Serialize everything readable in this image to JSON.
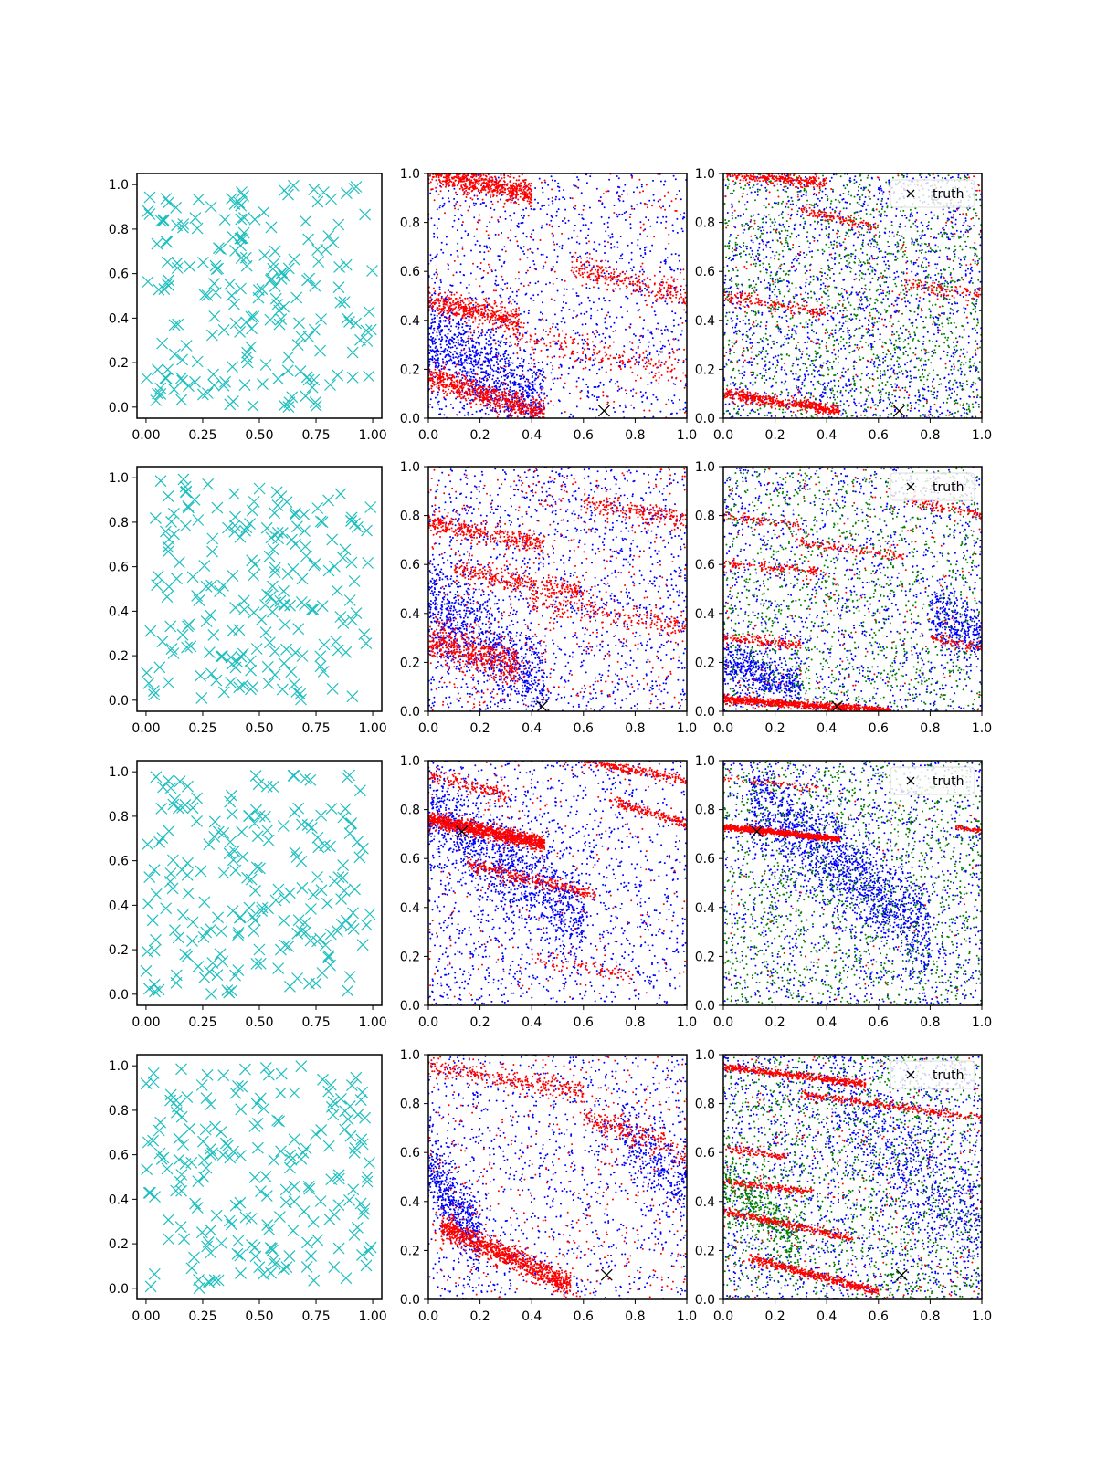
{
  "figure": {
    "background": "#ffffff",
    "layout": "4 rows x 3 columns of scatter plots",
    "colors": {
      "cyan": "#1fbfbf",
      "red": "#ff0000",
      "blue": "#0000ff",
      "green": "#008000",
      "black": "#000000"
    }
  },
  "chart_data": [
    {
      "row": 0,
      "col": 0,
      "type": "scatter",
      "marker": "x",
      "color": "#1fbfbf",
      "n_points": 200,
      "seed": 11,
      "xlim": [
        -0.04,
        1.04
      ],
      "ylim": [
        -0.05,
        1.05
      ],
      "xticks": [
        "0.00",
        "0.25",
        "0.50",
        "0.75",
        "1.00"
      ],
      "yticks": [
        "0.0",
        "0.2",
        "0.4",
        "0.6",
        "0.8",
        "1.0"
      ]
    },
    {
      "row": 0,
      "col": 1,
      "type": "scatter",
      "marker": "dot",
      "seed": 12,
      "xlim": [
        0,
        1
      ],
      "ylim": [
        0,
        1
      ],
      "xticks": [
        "0.0",
        "0.2",
        "0.4",
        "0.6",
        "0.8",
        "1.0"
      ],
      "yticks": [
        "0.0",
        "0.2",
        "0.4",
        "0.6",
        "0.8",
        "1.0"
      ],
      "truth": {
        "x": 0.68,
        "y": 0.03
      },
      "series": [
        {
          "name": "blue",
          "color": "#0000ff",
          "uniform": 1200,
          "bands": [
            {
              "x0": 0.0,
              "x1": 0.45,
              "y0": 0.35,
              "y1": 0.05,
              "n": 900,
              "w": 0.18
            }
          ]
        },
        {
          "name": "red",
          "color": "#ff0000",
          "uniform": 300,
          "bands": [
            {
              "x0": 0.0,
              "x1": 0.4,
              "y0": 1.0,
              "y1": 0.92,
              "n": 700,
              "w": 0.05
            },
            {
              "x0": 0.0,
              "x1": 0.35,
              "y0": 0.48,
              "y1": 0.4,
              "n": 450,
              "w": 0.05
            },
            {
              "x0": 0.0,
              "x1": 0.45,
              "y0": 0.17,
              "y1": 0.02,
              "n": 650,
              "w": 0.05
            },
            {
              "x0": 0.55,
              "x1": 1.0,
              "y0": 0.62,
              "y1": 0.5,
              "n": 250,
              "w": 0.05
            },
            {
              "x0": 0.3,
              "x1": 1.0,
              "y0": 0.35,
              "y1": 0.18,
              "n": 200,
              "w": 0.06
            }
          ]
        }
      ]
    },
    {
      "row": 0,
      "col": 2,
      "type": "scatter",
      "marker": "dot",
      "seed": 13,
      "xlim": [
        0,
        1
      ],
      "ylim": [
        0,
        1
      ],
      "xticks": [
        "0.0",
        "0.2",
        "0.4",
        "0.6",
        "0.8",
        "1.0"
      ],
      "yticks": [
        "0.0",
        "0.2",
        "0.4",
        "0.6",
        "0.8",
        "1.0"
      ],
      "truth": {
        "x": 0.68,
        "y": 0.03
      },
      "legend": {
        "label": "truth",
        "location": "upper right"
      },
      "series": [
        {
          "name": "blue",
          "color": "#0000ff",
          "uniform": 1700,
          "bands": []
        },
        {
          "name": "green",
          "color": "#008000",
          "uniform": 1400,
          "bands": []
        },
        {
          "name": "red",
          "color": "#ff0000",
          "uniform": 250,
          "bands": [
            {
              "x0": 0.0,
              "x1": 0.4,
              "y0": 1.0,
              "y1": 0.96,
              "n": 300,
              "w": 0.03
            },
            {
              "x0": 0.3,
              "x1": 0.6,
              "y0": 0.85,
              "y1": 0.78,
              "n": 120,
              "w": 0.02
            },
            {
              "x0": 0.0,
              "x1": 0.45,
              "y0": 0.1,
              "y1": 0.03,
              "n": 500,
              "w": 0.025
            },
            {
              "x0": 0.0,
              "x1": 0.4,
              "y0": 0.5,
              "y1": 0.43,
              "n": 150,
              "w": 0.03
            },
            {
              "x0": 0.7,
              "x1": 1.0,
              "y0": 0.55,
              "y1": 0.5,
              "n": 100,
              "w": 0.03
            }
          ]
        }
      ]
    },
    {
      "row": 1,
      "col": 0,
      "type": "scatter",
      "marker": "x",
      "color": "#1fbfbf",
      "n_points": 200,
      "seed": 21,
      "xlim": [
        -0.04,
        1.04
      ],
      "ylim": [
        -0.05,
        1.05
      ],
      "xticks": [
        "0.00",
        "0.25",
        "0.50",
        "0.75",
        "1.00"
      ],
      "yticks": [
        "0.0",
        "0.2",
        "0.4",
        "0.6",
        "0.8",
        "1.0"
      ]
    },
    {
      "row": 1,
      "col": 1,
      "type": "scatter",
      "marker": "dot",
      "seed": 22,
      "xlim": [
        0,
        1
      ],
      "ylim": [
        0,
        1
      ],
      "xticks": [
        "0.0",
        "0.2",
        "0.4",
        "0.6",
        "0.8",
        "1.0"
      ],
      "yticks": [
        "0.0",
        "0.2",
        "0.4",
        "0.6",
        "0.8",
        "1.0"
      ],
      "truth": {
        "x": 0.44,
        "y": 0.02
      },
      "series": [
        {
          "name": "blue",
          "color": "#0000ff",
          "uniform": 1400,
          "bands": [
            {
              "x0": 0.0,
              "x1": 0.45,
              "y0": 0.45,
              "y1": 0.1,
              "n": 800,
              "w": 0.2
            }
          ]
        },
        {
          "name": "red",
          "color": "#ff0000",
          "uniform": 500,
          "bands": [
            {
              "x0": 0.0,
              "x1": 0.45,
              "y0": 0.77,
              "y1": 0.68,
              "n": 350,
              "w": 0.04
            },
            {
              "x0": 0.1,
              "x1": 0.6,
              "y0": 0.58,
              "y1": 0.48,
              "n": 300,
              "w": 0.04
            },
            {
              "x0": 0.0,
              "x1": 0.35,
              "y0": 0.3,
              "y1": 0.18,
              "n": 500,
              "w": 0.08
            },
            {
              "x0": 0.6,
              "x1": 1.0,
              "y0": 0.85,
              "y1": 0.78,
              "n": 200,
              "w": 0.04
            },
            {
              "x0": 0.4,
              "x1": 1.0,
              "y0": 0.45,
              "y1": 0.35,
              "n": 200,
              "w": 0.05
            }
          ]
        }
      ]
    },
    {
      "row": 1,
      "col": 2,
      "type": "scatter",
      "marker": "dot",
      "seed": 23,
      "xlim": [
        0,
        1
      ],
      "ylim": [
        0,
        1
      ],
      "xticks": [
        "0.0",
        "0.2",
        "0.4",
        "0.6",
        "0.8",
        "1.0"
      ],
      "yticks": [
        "0.0",
        "0.2",
        "0.4",
        "0.6",
        "0.8",
        "1.0"
      ],
      "truth": {
        "x": 0.44,
        "y": 0.02
      },
      "legend": {
        "label": "truth",
        "location": "upper right"
      },
      "series": [
        {
          "name": "blue",
          "color": "#0000ff",
          "uniform": 1300,
          "bands": [
            {
              "x0": 0.0,
              "x1": 0.3,
              "y0": 0.2,
              "y1": 0.1,
              "n": 500,
              "w": 0.1
            },
            {
              "x0": 0.8,
              "x1": 1.0,
              "y0": 0.4,
              "y1": 0.3,
              "n": 300,
              "w": 0.12
            }
          ]
        },
        {
          "name": "green",
          "color": "#008000",
          "uniform": 1200,
          "bands": []
        },
        {
          "name": "red",
          "color": "#ff0000",
          "uniform": 200,
          "bands": [
            {
              "x0": 0.0,
              "x1": 0.65,
              "y0": 0.05,
              "y1": 0.0,
              "n": 900,
              "w": 0.015
            },
            {
              "x0": 0.0,
              "x1": 0.3,
              "y0": 0.3,
              "y1": 0.27,
              "n": 150,
              "w": 0.02
            },
            {
              "x0": 0.0,
              "x1": 0.4,
              "y0": 0.6,
              "y1": 0.57,
              "n": 120,
              "w": 0.02
            },
            {
              "x0": 0.3,
              "x1": 0.7,
              "y0": 0.69,
              "y1": 0.63,
              "n": 120,
              "w": 0.02
            },
            {
              "x0": 0.0,
              "x1": 0.3,
              "y0": 0.8,
              "y1": 0.76,
              "n": 80,
              "w": 0.02
            },
            {
              "x0": 0.7,
              "x1": 1.0,
              "y0": 0.86,
              "y1": 0.8,
              "n": 100,
              "w": 0.02
            },
            {
              "x0": 0.8,
              "x1": 1.0,
              "y0": 0.3,
              "y1": 0.26,
              "n": 80,
              "w": 0.02
            }
          ]
        }
      ]
    },
    {
      "row": 2,
      "col": 0,
      "type": "scatter",
      "marker": "x",
      "color": "#1fbfbf",
      "n_points": 200,
      "seed": 31,
      "xlim": [
        -0.04,
        1.04
      ],
      "ylim": [
        -0.05,
        1.05
      ],
      "xticks": [
        "0.00",
        "0.25",
        "0.50",
        "0.75",
        "1.00"
      ],
      "yticks": [
        "0.0",
        "0.2",
        "0.4",
        "0.6",
        "0.8",
        "1.0"
      ]
    },
    {
      "row": 2,
      "col": 1,
      "type": "scatter",
      "marker": "dot",
      "seed": 32,
      "xlim": [
        0,
        1
      ],
      "ylim": [
        0,
        1
      ],
      "xticks": [
        "0.0",
        "0.2",
        "0.4",
        "0.6",
        "0.8",
        "1.0"
      ],
      "yticks": [
        "0.0",
        "0.2",
        "0.4",
        "0.6",
        "0.8",
        "1.0"
      ],
      "truth": {
        "x": 0.13,
        "y": 0.71
      },
      "series": [
        {
          "name": "blue",
          "color": "#0000ff",
          "uniform": 1300,
          "bands": [
            {
              "x0": 0.0,
              "x1": 0.6,
              "y0": 0.8,
              "y1": 0.35,
              "n": 1100,
              "w": 0.2
            }
          ]
        },
        {
          "name": "red",
          "color": "#ff0000",
          "uniform": 200,
          "bands": [
            {
              "x0": 0.0,
              "x1": 0.45,
              "y0": 0.76,
              "y1": 0.66,
              "n": 1100,
              "w": 0.03
            },
            {
              "x0": 0.15,
              "x1": 0.65,
              "y0": 0.58,
              "y1": 0.45,
              "n": 300,
              "w": 0.03
            },
            {
              "x0": 0.0,
              "x1": 0.3,
              "y0": 0.94,
              "y1": 0.86,
              "n": 150,
              "w": 0.03
            },
            {
              "x0": 0.6,
              "x1": 1.0,
              "y0": 1.0,
              "y1": 0.92,
              "n": 250,
              "w": 0.02
            },
            {
              "x0": 0.7,
              "x1": 1.0,
              "y0": 0.84,
              "y1": 0.74,
              "n": 200,
              "w": 0.02
            },
            {
              "x0": 0.4,
              "x1": 0.8,
              "y0": 0.2,
              "y1": 0.12,
              "n": 80,
              "w": 0.03
            }
          ]
        }
      ]
    },
    {
      "row": 2,
      "col": 2,
      "type": "scatter",
      "marker": "dot",
      "seed": 33,
      "xlim": [
        0,
        1
      ],
      "ylim": [
        0,
        1
      ],
      "xticks": [
        "0.0",
        "0.2",
        "0.4",
        "0.6",
        "0.8",
        "1.0"
      ],
      "yticks": [
        "0.0",
        "0.2",
        "0.4",
        "0.6",
        "0.8",
        "1.0"
      ],
      "truth": {
        "x": 0.13,
        "y": 0.71
      },
      "legend": {
        "label": "truth",
        "location": "upper right"
      },
      "series": [
        {
          "name": "blue",
          "color": "#0000ff",
          "uniform": 1200,
          "bands": [
            {
              "x0": 0.1,
              "x1": 0.8,
              "y0": 0.85,
              "y1": 0.3,
              "n": 1500,
              "w": 0.2
            }
          ]
        },
        {
          "name": "green",
          "color": "#008000",
          "uniform": 1400,
          "bands": []
        },
        {
          "name": "red",
          "color": "#ff0000",
          "uniform": 60,
          "bands": [
            {
              "x0": 0.0,
              "x1": 0.45,
              "y0": 0.73,
              "y1": 0.68,
              "n": 800,
              "w": 0.012
            },
            {
              "x0": 0.9,
              "x1": 1.0,
              "y0": 0.73,
              "y1": 0.71,
              "n": 60,
              "w": 0.01
            },
            {
              "x0": 0.0,
              "x1": 0.4,
              "y0": 0.93,
              "y1": 0.88,
              "n": 60,
              "w": 0.015
            }
          ]
        }
      ]
    },
    {
      "row": 3,
      "col": 0,
      "type": "scatter",
      "marker": "x",
      "color": "#1fbfbf",
      "n_points": 200,
      "seed": 41,
      "xlim": [
        -0.04,
        1.04
      ],
      "ylim": [
        -0.05,
        1.05
      ],
      "xticks": [
        "0.00",
        "0.25",
        "0.50",
        "0.75",
        "1.00"
      ],
      "yticks": [
        "0.0",
        "0.2",
        "0.4",
        "0.6",
        "0.8",
        "1.0"
      ]
    },
    {
      "row": 3,
      "col": 1,
      "type": "scatter",
      "marker": "dot",
      "seed": 42,
      "xlim": [
        0,
        1
      ],
      "ylim": [
        0,
        1
      ],
      "xticks": [
        "0.0",
        "0.2",
        "0.4",
        "0.6",
        "0.8",
        "1.0"
      ],
      "yticks": [
        "0.0",
        "0.2",
        "0.4",
        "0.6",
        "0.8",
        "1.0"
      ],
      "truth": {
        "x": 0.69,
        "y": 0.1
      },
      "series": [
        {
          "name": "blue",
          "color": "#0000ff",
          "uniform": 1100,
          "bands": [
            {
              "x0": 0.0,
              "x1": 0.2,
              "y0": 0.55,
              "y1": 0.25,
              "n": 500,
              "w": 0.15
            },
            {
              "x0": 0.75,
              "x1": 1.0,
              "y0": 0.7,
              "y1": 0.45,
              "n": 300,
              "w": 0.15
            }
          ]
        },
        {
          "name": "red",
          "color": "#ff0000",
          "uniform": 400,
          "bands": [
            {
              "x0": 0.05,
              "x1": 0.55,
              "y0": 0.3,
              "y1": 0.06,
              "n": 1000,
              "w": 0.05
            },
            {
              "x0": 0.0,
              "x1": 0.6,
              "y0": 0.95,
              "y1": 0.85,
              "n": 300,
              "w": 0.04
            },
            {
              "x0": 0.6,
              "x1": 1.0,
              "y0": 0.75,
              "y1": 0.6,
              "n": 200,
              "w": 0.05
            }
          ]
        }
      ]
    },
    {
      "row": 3,
      "col": 2,
      "type": "scatter",
      "marker": "dot",
      "seed": 43,
      "xlim": [
        0,
        1
      ],
      "ylim": [
        0,
        1
      ],
      "xticks": [
        "0.0",
        "0.2",
        "0.4",
        "0.6",
        "0.8",
        "1.0"
      ],
      "yticks": [
        "0.0",
        "0.2",
        "0.4",
        "0.6",
        "0.8",
        "1.0"
      ],
      "truth": {
        "x": 0.69,
        "y": 0.1
      },
      "legend": {
        "label": "truth",
        "location": "upper right"
      },
      "series": [
        {
          "name": "blue",
          "color": "#0000ff",
          "uniform": 1700,
          "bands": [
            {
              "x0": 0.4,
              "x1": 1.0,
              "y0": 0.85,
              "y1": 0.3,
              "n": 500,
              "w": 0.2
            }
          ]
        },
        {
          "name": "green",
          "color": "#008000",
          "uniform": 1400,
          "bands": [
            {
              "x0": 0.0,
              "x1": 0.3,
              "y0": 0.5,
              "y1": 0.2,
              "n": 400,
              "w": 0.15
            }
          ]
        },
        {
          "name": "red",
          "color": "#ff0000",
          "uniform": 250,
          "bands": [
            {
              "x0": 0.0,
              "x1": 0.55,
              "y0": 0.95,
              "y1": 0.88,
              "n": 450,
              "w": 0.015
            },
            {
              "x0": 0.3,
              "x1": 1.0,
              "y0": 0.84,
              "y1": 0.74,
              "n": 300,
              "w": 0.015
            },
            {
              "x0": 0.0,
              "x1": 0.5,
              "y0": 0.36,
              "y1": 0.25,
              "n": 300,
              "w": 0.015
            },
            {
              "x0": 0.1,
              "x1": 0.6,
              "y0": 0.17,
              "y1": 0.03,
              "n": 450,
              "w": 0.02
            },
            {
              "x0": 0.0,
              "x1": 0.35,
              "y0": 0.48,
              "y1": 0.44,
              "n": 150,
              "w": 0.015
            },
            {
              "x0": 0.0,
              "x1": 0.25,
              "y0": 0.62,
              "y1": 0.58,
              "n": 100,
              "w": 0.015
            }
          ]
        }
      ]
    }
  ]
}
